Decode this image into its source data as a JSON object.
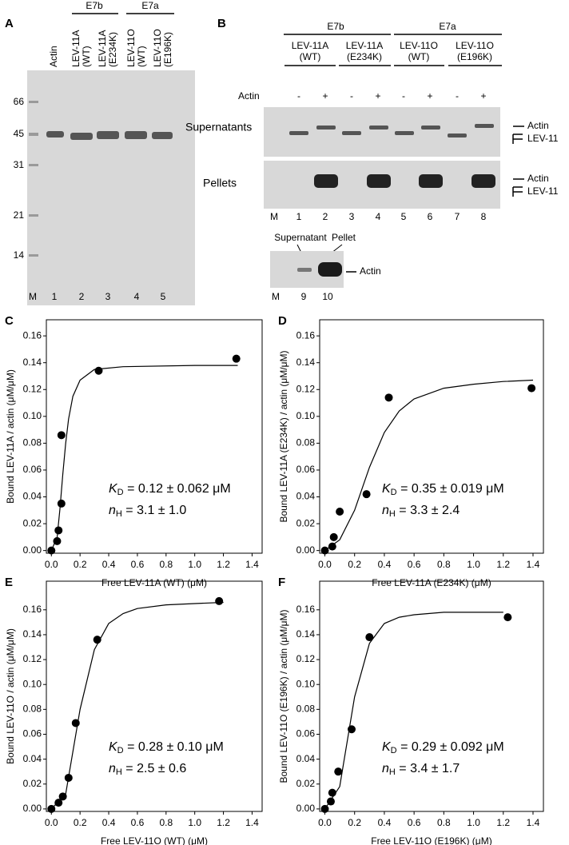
{
  "gels": {
    "a": {
      "panel": "A",
      "markers": [
        "66",
        "45",
        "31",
        "21",
        "14"
      ],
      "headers": [
        [
          "Actin"
        ],
        [
          "LEV-11A",
          "(WT)"
        ],
        [
          "LEV-11A",
          "(E234K)"
        ],
        [
          "LEV-11O",
          "(WT)"
        ],
        [
          "LEV-11O",
          "(E196K)"
        ]
      ],
      "groups": [
        "E7b",
        "E7a"
      ],
      "lanes": [
        "M",
        "1",
        "2",
        "3",
        "4",
        "5"
      ]
    },
    "b": {
      "panel": "B",
      "groups": [
        "E7b",
        "E7a"
      ],
      "headers": [
        [
          "LEV-11A",
          "(WT)"
        ],
        [
          "LEV-11A",
          "(E234K)"
        ],
        [
          "LEV-11O",
          "(WT)"
        ],
        [
          "LEV-11O",
          "(E196K)"
        ]
      ],
      "actin_label": "Actin",
      "signs": [
        "-",
        "+",
        "-",
        "+",
        "-",
        "+",
        "-",
        "+"
      ],
      "rows": [
        "Supernatants",
        "Pellets"
      ],
      "band_labels": [
        "Actin",
        "LEV-11"
      ],
      "lanes": [
        "M",
        "1",
        "2",
        "3",
        "4",
        "5",
        "6",
        "7",
        "8"
      ],
      "control": {
        "headers": [
          "Supernatant",
          "Pellet"
        ],
        "band_label": "Actin",
        "lanes": [
          "M",
          "9",
          "10"
        ]
      }
    }
  },
  "chart_data": [
    {
      "type": "scatter",
      "panel": "C",
      "xlabel": "Free LEV-11A (WT) (μM)",
      "ylabel": "Bound LEV-11A / actin (μM/μM)",
      "annotation": {
        "kd": [
          "K",
          "D",
          " = 0.12 ± 0.062 μM"
        ],
        "nh": [
          "n",
          "H",
          " = 3.1 ± 1.0"
        ]
      },
      "xlim": [
        -0.035,
        1.47
      ],
      "ylim": [
        -0.002,
        0.172
      ],
      "xticks": [
        {
          "value": 0,
          "label": "0.0"
        },
        {
          "value": 0.2,
          "label": "0.2"
        },
        {
          "value": 0.4,
          "label": "0.4"
        },
        {
          "value": 0.6,
          "label": "0.6"
        },
        {
          "value": 0.8,
          "label": "0.8"
        },
        {
          "value": 1,
          "label": "1.0"
        },
        {
          "value": 1.2,
          "label": "1.2"
        },
        {
          "value": 1.4,
          "label": "1.4"
        }
      ],
      "yticks": [
        {
          "value": 0,
          "label": "0.00"
        },
        {
          "value": 0.02,
          "label": "0.02"
        },
        {
          "value": 0.04,
          "label": "0.04"
        },
        {
          "value": 0.06,
          "label": "0.06"
        },
        {
          "value": 0.08,
          "label": "0.08"
        },
        {
          "value": 0.1,
          "label": "0.10"
        },
        {
          "value": 0.12,
          "label": "0.12"
        },
        {
          "value": 0.14,
          "label": "0.14"
        },
        {
          "value": 0.16,
          "label": "0.16"
        }
      ],
      "series": [
        {
          "color": "#000000",
          "style": "points",
          "x": [
            0,
            0.04,
            0.05,
            0.07,
            0.07,
            0.33,
            1.29
          ],
          "values": [
            0,
            0.007,
            0.015,
            0.035,
            0.086,
            0.134,
            0.143
          ]
        },
        {
          "color": "#000000",
          "style": "line",
          "x": [
            0,
            0.04,
            0.06,
            0.08,
            0.1,
            0.12,
            0.15,
            0.2,
            0.3,
            0.5,
            1.0,
            1.3
          ],
          "values": [
            0,
            0.01,
            0.031,
            0.057,
            0.08,
            0.098,
            0.115,
            0.127,
            0.135,
            0.137,
            0.138,
            0.138
          ]
        }
      ]
    },
    {
      "type": "scatter",
      "panel": "D",
      "xlabel": "Free LEV-11A (E234K) (μM)",
      "ylabel": "Bound LEV-11A (E234K) / actin (μM/μM)",
      "annotation": {
        "kd": [
          "K",
          "D",
          " = 0.35 ± 0.019 μM"
        ],
        "nh": [
          "n",
          "H",
          " = 3.3 ± 2.4"
        ]
      },
      "xlim": [
        -0.035,
        1.47
      ],
      "ylim": [
        -0.002,
        0.172
      ],
      "xticks": [
        {
          "value": 0,
          "label": "0.0"
        },
        {
          "value": 0.2,
          "label": "0.2"
        },
        {
          "value": 0.4,
          "label": "0.4"
        },
        {
          "value": 0.6,
          "label": "0.6"
        },
        {
          "value": 0.8,
          "label": "0.8"
        },
        {
          "value": 1,
          "label": "1.0"
        },
        {
          "value": 1.2,
          "label": "1.2"
        },
        {
          "value": 1.4,
          "label": "1.4"
        }
      ],
      "yticks": [
        {
          "value": 0,
          "label": "0.00"
        },
        {
          "value": 0.02,
          "label": "0.02"
        },
        {
          "value": 0.04,
          "label": "0.04"
        },
        {
          "value": 0.06,
          "label": "0.06"
        },
        {
          "value": 0.08,
          "label": "0.08"
        },
        {
          "value": 0.1,
          "label": "0.10"
        },
        {
          "value": 0.12,
          "label": "0.12"
        },
        {
          "value": 0.14,
          "label": "0.14"
        },
        {
          "value": 0.16,
          "label": "0.16"
        }
      ],
      "series": [
        {
          "color": "#000000",
          "style": "points",
          "x": [
            0,
            0.05,
            0.06,
            0.1,
            0.28,
            0.43,
            1.39
          ],
          "values": [
            0,
            0.003,
            0.01,
            0.029,
            0.042,
            0.114,
            0.121
          ]
        },
        {
          "color": "#000000",
          "style": "line",
          "x": [
            0,
            0.1,
            0.2,
            0.3,
            0.4,
            0.5,
            0.6,
            0.8,
            1.0,
            1.2,
            1.4
          ],
          "values": [
            0,
            0.008,
            0.03,
            0.062,
            0.088,
            0.104,
            0.113,
            0.121,
            0.124,
            0.126,
            0.127
          ]
        }
      ]
    },
    {
      "type": "scatter",
      "panel": "E",
      "xlabel": "Free LEV-11O (WT) (μM)",
      "ylabel": "Bound LEV-11O / actin (μM/μM)",
      "annotation": {
        "kd": [
          "K",
          "D",
          " = 0.28 ± 0.10 μM"
        ],
        "nh": [
          "n",
          "H",
          " = 2.5 ± 0.6"
        ]
      },
      "xlim": [
        -0.035,
        1.47
      ],
      "ylim": [
        -0.002,
        0.183
      ],
      "xticks": [
        {
          "value": 0,
          "label": "0.0"
        },
        {
          "value": 0.2,
          "label": "0.2"
        },
        {
          "value": 0.4,
          "label": "0.4"
        },
        {
          "value": 0.6,
          "label": "0.6"
        },
        {
          "value": 0.8,
          "label": "0.8"
        },
        {
          "value": 1,
          "label": "1.0"
        },
        {
          "value": 1.2,
          "label": "1.2"
        },
        {
          "value": 1.4,
          "label": "1.4"
        }
      ],
      "yticks": [
        {
          "value": 0,
          "label": "0.00"
        },
        {
          "value": 0.02,
          "label": "0.02"
        },
        {
          "value": 0.04,
          "label": "0.04"
        },
        {
          "value": 0.06,
          "label": "0.06"
        },
        {
          "value": 0.08,
          "label": "0.08"
        },
        {
          "value": 0.1,
          "label": "0.10"
        },
        {
          "value": 0.12,
          "label": "0.12"
        },
        {
          "value": 0.14,
          "label": "0.14"
        },
        {
          "value": 0.16,
          "label": "0.16"
        }
      ],
      "series": [
        {
          "color": "#000000",
          "style": "points",
          "x": [
            0,
            0.05,
            0.08,
            0.12,
            0.17,
            0.32,
            1.17
          ],
          "values": [
            0,
            0.005,
            0.01,
            0.025,
            0.069,
            0.136,
            0.167
          ]
        },
        {
          "color": "#000000",
          "style": "line",
          "x": [
            0,
            0.1,
            0.2,
            0.3,
            0.4,
            0.5,
            0.6,
            0.8,
            1.0,
            1.2
          ],
          "values": [
            0,
            0.012,
            0.08,
            0.128,
            0.149,
            0.157,
            0.161,
            0.164,
            0.165,
            0.166
          ]
        }
      ]
    },
    {
      "type": "scatter",
      "panel": "F",
      "xlabel": "Free LEV-11O (E196K) (μM)",
      "ylabel": "Bound LEV-11O (E196K) / actin (μM/μM)",
      "annotation": {
        "kd": [
          "K",
          "D",
          " = 0.29 ± 0.092 μM"
        ],
        "nh": [
          "n",
          "H",
          " = 3.4 ± 1.7"
        ]
      },
      "xlim": [
        -0.035,
        1.47
      ],
      "ylim": [
        -0.002,
        0.183
      ],
      "xticks": [
        {
          "value": 0,
          "label": "0.0"
        },
        {
          "value": 0.2,
          "label": "0.2"
        },
        {
          "value": 0.4,
          "label": "0.4"
        },
        {
          "value": 0.6,
          "label": "0.6"
        },
        {
          "value": 0.8,
          "label": "0.8"
        },
        {
          "value": 1,
          "label": "1.0"
        },
        {
          "value": 1.2,
          "label": "1.2"
        },
        {
          "value": 1.4,
          "label": "1.4"
        }
      ],
      "yticks": [
        {
          "value": 0,
          "label": "0.00"
        },
        {
          "value": 0.02,
          "label": "0.02"
        },
        {
          "value": 0.04,
          "label": "0.04"
        },
        {
          "value": 0.06,
          "label": "0.06"
        },
        {
          "value": 0.08,
          "label": "0.08"
        },
        {
          "value": 0.1,
          "label": "0.10"
        },
        {
          "value": 0.12,
          "label": "0.12"
        },
        {
          "value": 0.14,
          "label": "0.14"
        },
        {
          "value": 0.16,
          "label": "0.16"
        }
      ],
      "series": [
        {
          "color": "#000000",
          "style": "points",
          "x": [
            0,
            0.04,
            0.05,
            0.09,
            0.18,
            0.3,
            1.23
          ],
          "values": [
            0,
            0.006,
            0.013,
            0.03,
            0.064,
            0.138,
            0.154
          ]
        },
        {
          "color": "#000000",
          "style": "line",
          "x": [
            0,
            0.1,
            0.2,
            0.3,
            0.4,
            0.5,
            0.6,
            0.8,
            1.0,
            1.2
          ],
          "values": [
            0,
            0.018,
            0.09,
            0.133,
            0.149,
            0.154,
            0.156,
            0.158,
            0.158,
            0.158
          ]
        }
      ]
    }
  ]
}
